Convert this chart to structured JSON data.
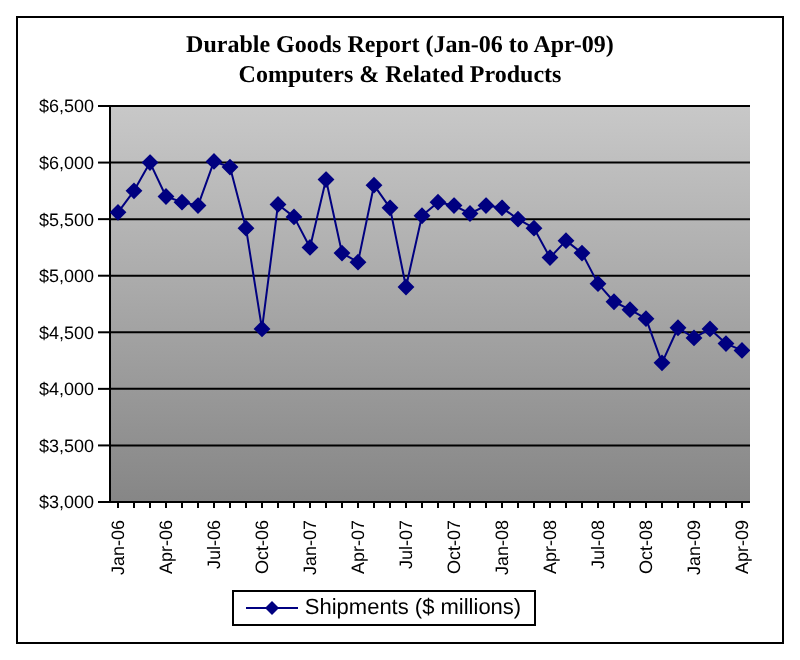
{
  "chart_data": {
    "type": "line",
    "title": "Durable Goods Report (Jan-06 to Apr-09)",
    "subtitle": "Computers & Related Products",
    "categories": [
      "Jan-06",
      null,
      null,
      "Apr-06",
      null,
      null,
      "Jul-06",
      null,
      null,
      "Oct-06",
      null,
      null,
      "Jan-07",
      null,
      null,
      "Apr-07",
      null,
      null,
      "Jul-07",
      null,
      null,
      "Oct-07",
      null,
      null,
      "Jan-08",
      null,
      null,
      "Apr-08",
      null,
      null,
      "Jul-08",
      null,
      null,
      "Oct-08",
      null,
      null,
      "Jan-09",
      null,
      null,
      "Apr-09"
    ],
    "series": [
      {
        "name": "Shipments ($ millions)",
        "color": "#000080",
        "values": [
          5560,
          5750,
          6000,
          5700,
          5650,
          5620,
          6010,
          5960,
          5420,
          4530,
          5630,
          5520,
          5250,
          5850,
          5200,
          5120,
          5800,
          5600,
          4900,
          5530,
          5650,
          5620,
          5550,
          5620,
          5600,
          5500,
          5420,
          5160,
          5310,
          5200,
          4930,
          4770,
          4700,
          4620,
          4230,
          4540,
          4450,
          4530,
          4400,
          4340
        ]
      }
    ],
    "ylim": [
      3000,
      6500
    ],
    "yticks": [
      {
        "value": 3000,
        "label": "$3,000"
      },
      {
        "value": 3500,
        "label": "$3,500"
      },
      {
        "value": 4000,
        "label": "$4,000"
      },
      {
        "value": 4500,
        "label": "$4,500"
      },
      {
        "value": 5000,
        "label": "$5,000"
      },
      {
        "value": 5500,
        "label": "$5,500"
      },
      {
        "value": 6000,
        "label": "$6,000"
      },
      {
        "value": 6500,
        "label": "$6,500"
      }
    ],
    "grid": "y",
    "legend": "bottom",
    "marker": "diamond",
    "line_style": "solid"
  }
}
